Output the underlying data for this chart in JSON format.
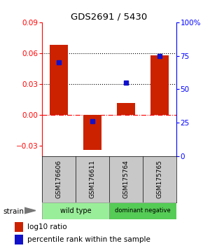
{
  "title": "GDS2691 / 5430",
  "samples": [
    "GSM176606",
    "GSM176611",
    "GSM175764",
    "GSM175765"
  ],
  "log10_ratio": [
    0.068,
    -0.034,
    0.012,
    0.058
  ],
  "percentile_rank_pct": [
    70,
    26,
    55,
    75
  ],
  "ylim_left": [
    -0.04,
    0.09
  ],
  "ylim_right": [
    0,
    100
  ],
  "yticks_left": [
    -0.03,
    0,
    0.03,
    0.06,
    0.09
  ],
  "yticks_right": [
    0,
    25,
    50,
    75,
    100
  ],
  "hlines_dotted": [
    0.03,
    0.06
  ],
  "hline_zero": 0,
  "bar_color": "#cc2200",
  "dot_color": "#1111cc",
  "bar_width": 0.55,
  "groups": [
    {
      "label": "wild type",
      "color": "#99ee99",
      "start": 0,
      "end": 2
    },
    {
      "label": "dominant negative",
      "color": "#55cc55",
      "start": 2,
      "end": 4
    }
  ],
  "strain_label": "strain",
  "legend_bar_label": "log10 ratio",
  "legend_dot_label": "percentile rank within the sample",
  "background_color": "#ffffff",
  "label_area_color": "#c8c8c8",
  "fig_width": 3.0,
  "fig_height": 3.54
}
